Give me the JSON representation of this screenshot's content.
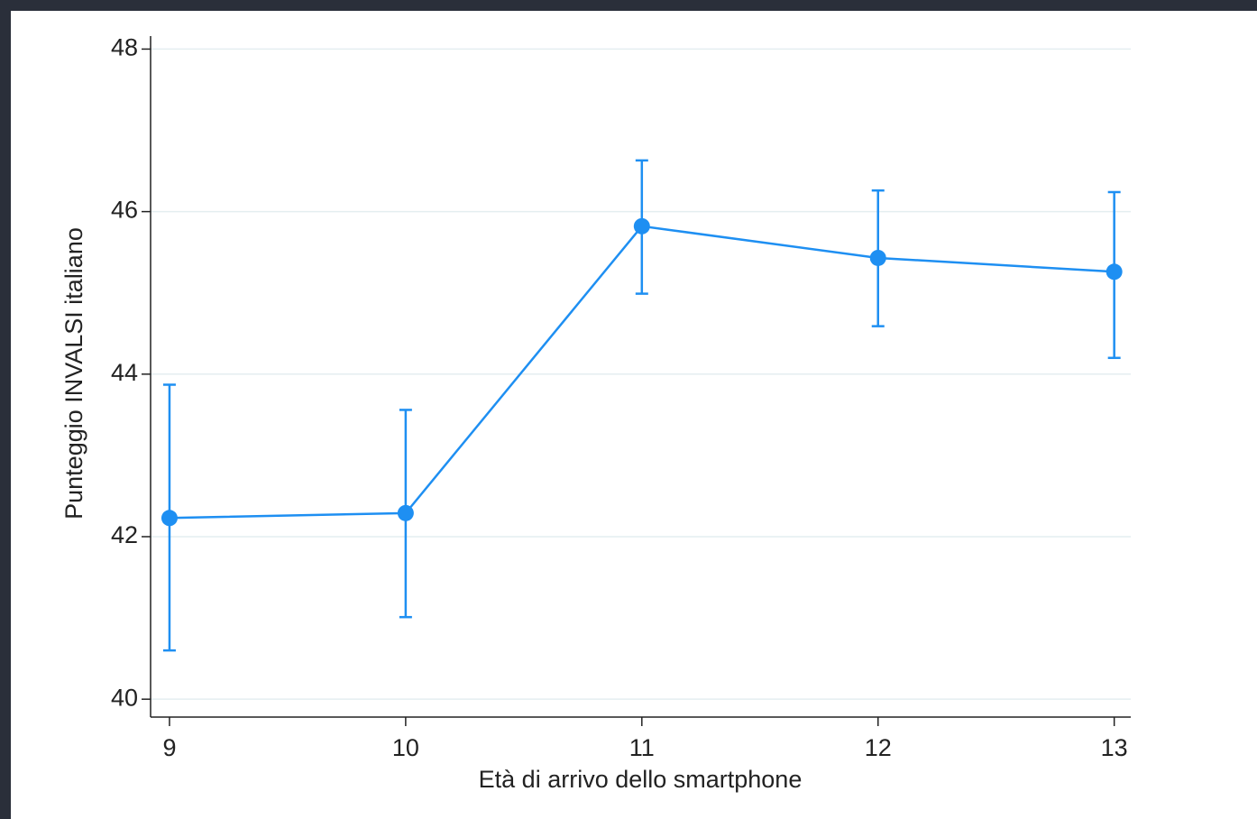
{
  "chart_data": {
    "type": "line",
    "x_label": "Età di arrivo dello smartphone",
    "y_label": "Punteggio INVALSI italiano",
    "x": [
      9,
      10,
      11,
      12,
      13
    ],
    "series": [
      {
        "color": "#1e8ff2",
        "values": [
          42.23,
          42.29,
          45.82,
          45.43,
          45.26
        ],
        "lower": [
          40.6,
          41.01,
          44.99,
          44.59,
          44.2
        ],
        "upper": [
          43.87,
          43.56,
          46.63,
          46.26,
          46.24
        ]
      }
    ],
    "xlim": [
      8.92,
      13.07
    ],
    "xticks": [
      9,
      10,
      11,
      12,
      13
    ],
    "ylim": [
      39.78,
      48.16
    ],
    "yticks": [
      40,
      42,
      44,
      46,
      48
    ],
    "grid": true
  }
}
